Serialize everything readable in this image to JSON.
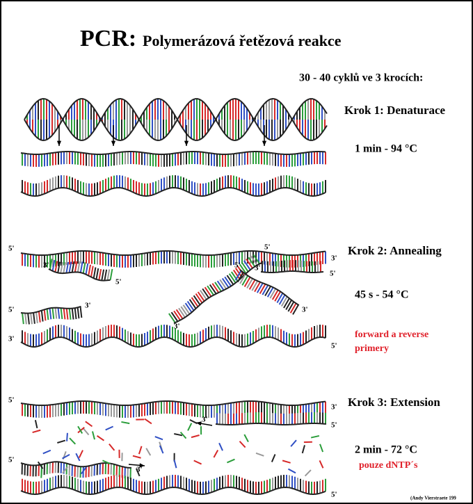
{
  "header": {
    "title_short": "PCR:",
    "title_long": "Polymerázová řetězová reakce",
    "subtitle": "30 - 40 cyklů ve 3 krocích:"
  },
  "steps": [
    {
      "title": "Krok 1: Denaturace",
      "condition": "1 min - 94 °C"
    },
    {
      "title": "Krok 2: Annealing",
      "condition": "45 s - 54 °C",
      "note": [
        "forward a reverse",
        "primery"
      ]
    },
    {
      "title": "Krok 3: Extension",
      "condition": "2 min - 72 °C",
      "note": [
        "pouze dNTP´s"
      ]
    }
  ],
  "end_labels": [
    "5'",
    "3'",
    "3'",
    "5'",
    "3'",
    "5'",
    "5'",
    "3'",
    "5'",
    "3'",
    "5'",
    "3'",
    "3'",
    "5'",
    "5'",
    "3'",
    "3'",
    "5'",
    "5'",
    "3'",
    "5'"
  ],
  "credit": "(Andy Vierstraete 199"
}
